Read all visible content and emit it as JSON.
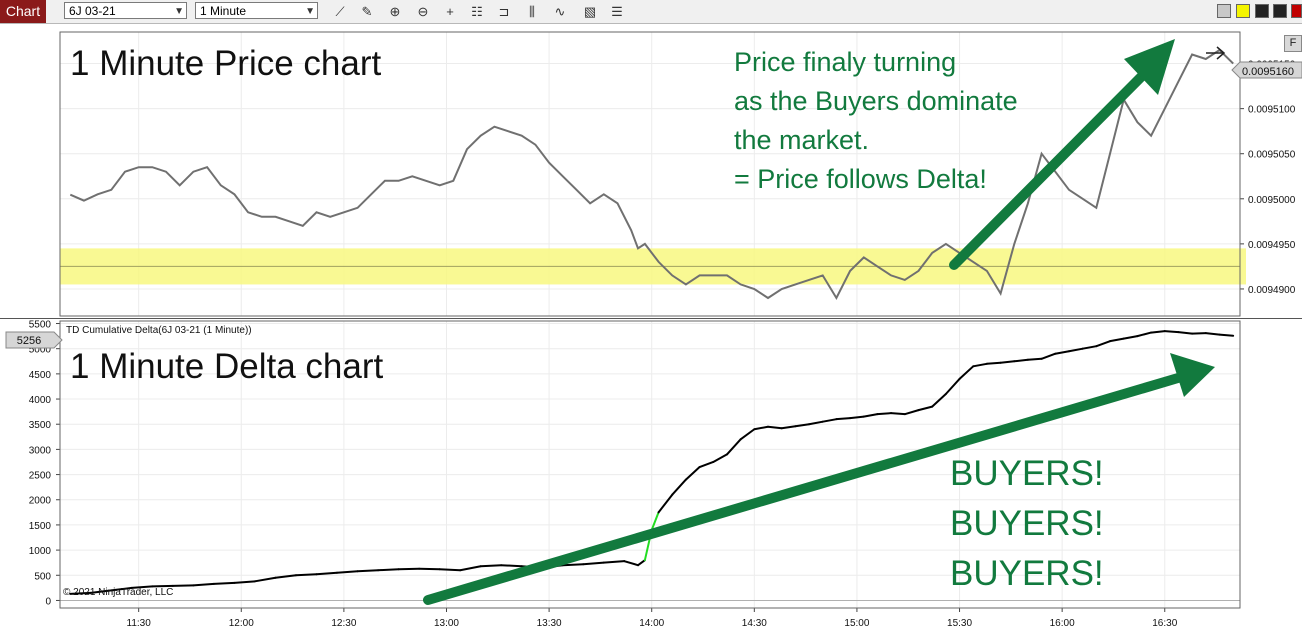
{
  "toolbar": {
    "chart_tab": "Chart",
    "instrument": "6J 03-21",
    "interval": "1 Minute"
  },
  "price_panel": {
    "heading": "1 Minute Price chart",
    "annotation_lines": [
      "Price finaly turning",
      "as the Buyers dominate",
      "the market.",
      "= Price follows Delta!"
    ],
    "last_price_label": "0.0095160",
    "y_ticks": [
      "0.0095150",
      "0.0095100",
      "0.0095050",
      "0.0095000",
      "0.0094950",
      "0.0094900"
    ],
    "f_button": "F"
  },
  "delta_panel": {
    "indicator_label": "TD Cumulative Delta(6J 03-21 (1 Minute))",
    "heading": "1 Minute Delta chart",
    "last_value_label": "5256",
    "buyers_lines": [
      "BUYERS!",
      "BUYERS!",
      "BUYERS!"
    ],
    "y_ticks": [
      "5500",
      "5000",
      "4500",
      "4000",
      "3500",
      "3000",
      "2500",
      "2000",
      "1500",
      "1000",
      "500",
      "0"
    ],
    "copyright": "© 2021 NinjaTrader, LLC"
  },
  "x_axis": {
    "ticks": [
      "11:30",
      "12:00",
      "12:30",
      "13:00",
      "13:30",
      "14:00",
      "14:30",
      "15:00",
      "15:30",
      "16:00",
      "16:30"
    ]
  },
  "colors": {
    "price_line": "#707070",
    "delta_line": "#000000",
    "delta_up": "#22dd22",
    "delta_down": "#dd2222",
    "support_zone": "#f8f880",
    "annotation": "#127a3e",
    "arrow": "#127a3e"
  },
  "chart_data": [
    {
      "type": "line",
      "title": "1 Minute Price chart",
      "x_unit": "time",
      "x_range": [
        "11:07",
        "16:52"
      ],
      "ylim": [
        0.009487,
        0.0095185
      ],
      "support_zone": [
        0.0094905,
        0.0094945
      ],
      "x": [
        "11:10",
        "11:14",
        "11:18",
        "11:22",
        "11:26",
        "11:30",
        "11:34",
        "11:38",
        "11:42",
        "11:46",
        "11:50",
        "11:54",
        "11:58",
        "12:02",
        "12:06",
        "12:10",
        "12:14",
        "12:18",
        "12:22",
        "12:26",
        "12:30",
        "12:34",
        "12:38",
        "12:42",
        "12:46",
        "12:50",
        "12:54",
        "12:58",
        "13:02",
        "13:06",
        "13:10",
        "13:14",
        "13:18",
        "13:22",
        "13:26",
        "13:30",
        "13:34",
        "13:38",
        "13:42",
        "13:46",
        "13:50",
        "13:54",
        "13:56",
        "13:58",
        "14:02",
        "14:06",
        "14:10",
        "14:14",
        "14:18",
        "14:22",
        "14:26",
        "14:30",
        "14:34",
        "14:38",
        "14:42",
        "14:46",
        "14:50",
        "14:54",
        "14:58",
        "15:02",
        "15:06",
        "15:10",
        "15:14",
        "15:18",
        "15:22",
        "15:26",
        "15:30",
        "15:34",
        "15:38",
        "15:42",
        "15:46",
        "15:50",
        "15:54",
        "15:58",
        "16:02",
        "16:06",
        "16:10",
        "16:14",
        "16:18",
        "16:22",
        "16:26",
        "16:30",
        "16:34",
        "16:38",
        "16:42",
        "16:46",
        "16:50"
      ],
      "values": [
        0.00950045,
        0.0094998,
        0.0095005,
        0.009501,
        0.009503,
        0.0095035,
        0.0095035,
        0.009503,
        0.0095015,
        0.009503,
        0.0095035,
        0.0095015,
        0.0095005,
        0.0094985,
        0.009498,
        0.009498,
        0.0094975,
        0.009497,
        0.0094985,
        0.009498,
        0.0094985,
        0.009499,
        0.0095005,
        0.009502,
        0.009502,
        0.0095025,
        0.009502,
        0.0095015,
        0.009502,
        0.0095055,
        0.009507,
        0.009508,
        0.0095075,
        0.009507,
        0.009506,
        0.009504,
        0.0095025,
        0.009501,
        0.0094995,
        0.0095005,
        0.0094995,
        0.0094965,
        0.0094945,
        0.009495,
        0.009493,
        0.0094915,
        0.0094905,
        0.0094915,
        0.0094915,
        0.0094915,
        0.0094905,
        0.00949,
        0.009489,
        0.00949,
        0.0094905,
        0.009491,
        0.0094915,
        0.009489,
        0.009492,
        0.0094935,
        0.0094925,
        0.0094915,
        0.009491,
        0.009492,
        0.009494,
        0.009495,
        0.009494,
        0.009493,
        0.009492,
        0.0094895,
        0.009495,
        0.0094995,
        0.009505,
        0.009503,
        0.009501,
        0.0095,
        0.009499,
        0.009505,
        0.009511,
        0.0095085,
        0.009507,
        0.00951,
        0.009513,
        0.009516,
        0.0095155,
        0.0095165,
        0.009515
      ]
    },
    {
      "type": "line",
      "title": "1 Minute Delta chart",
      "x_unit": "time",
      "x_range": [
        "11:07",
        "16:52"
      ],
      "ylim": [
        -150,
        5550
      ],
      "x": [
        "11:10",
        "11:16",
        "11:22",
        "11:28",
        "11:34",
        "11:40",
        "11:46",
        "11:52",
        "11:58",
        "12:04",
        "12:10",
        "12:16",
        "12:22",
        "12:28",
        "12:34",
        "12:40",
        "12:46",
        "12:52",
        "12:58",
        "13:04",
        "13:10",
        "13:16",
        "13:22",
        "13:28",
        "13:34",
        "13:40",
        "13:46",
        "13:52",
        "13:56",
        "13:58",
        "14:00",
        "14:02",
        "14:06",
        "14:10",
        "14:14",
        "14:18",
        "14:22",
        "14:26",
        "14:30",
        "14:34",
        "14:38",
        "14:42",
        "14:46",
        "14:50",
        "14:54",
        "14:58",
        "15:02",
        "15:06",
        "15:10",
        "15:14",
        "15:18",
        "15:22",
        "15:26",
        "15:30",
        "15:34",
        "15:38",
        "15:42",
        "15:46",
        "15:50",
        "15:54",
        "15:58",
        "16:02",
        "16:06",
        "16:10",
        "16:14",
        "16:18",
        "16:22",
        "16:26",
        "16:30",
        "16:34",
        "16:38",
        "16:42",
        "16:46",
        "16:50"
      ],
      "values": [
        130,
        150,
        200,
        250,
        280,
        290,
        300,
        330,
        350,
        380,
        450,
        500,
        520,
        550,
        580,
        600,
        620,
        630,
        620,
        600,
        680,
        700,
        680,
        650,
        700,
        720,
        750,
        780,
        700,
        800,
        1400,
        1750,
        2100,
        2400,
        2650,
        2750,
        2900,
        3200,
        3400,
        3450,
        3420,
        3460,
        3500,
        3550,
        3600,
        3620,
        3650,
        3700,
        3720,
        3700,
        3780,
        3850,
        4100,
        4400,
        4650,
        4700,
        4720,
        4750,
        4780,
        4800,
        4900,
        4950,
        5000,
        5050,
        5150,
        5200,
        5250,
        5320,
        5350,
        5330,
        5300,
        5310,
        5280,
        5256
      ]
    }
  ]
}
